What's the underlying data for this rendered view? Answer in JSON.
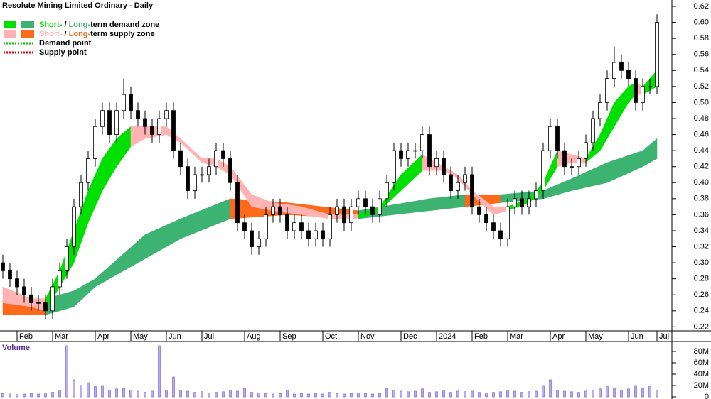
{
  "chart_data": {
    "type": "candlestick",
    "title": "Resolute Mining Limited Ordinary - Daily",
    "categories": [
      null,
      null,
      "Feb",
      null,
      null,
      null,
      null,
      "Mar",
      null,
      null,
      null,
      null,
      null,
      "Apr",
      null,
      null,
      null,
      null,
      "May",
      null,
      null,
      null,
      null,
      "Jun",
      null,
      null,
      null,
      null,
      "Jul",
      null,
      null,
      null,
      null,
      null,
      "Aug",
      null,
      null,
      null,
      null,
      "Sep",
      null,
      null,
      null,
      null,
      null,
      "Oct",
      null,
      null,
      null,
      null,
      "Nov",
      null,
      null,
      null,
      null,
      null,
      "Dec",
      null,
      null,
      null,
      null,
      "2024",
      null,
      null,
      null,
      null,
      "Feb",
      null,
      null,
      null,
      null,
      "Mar",
      null,
      null,
      null,
      null,
      null,
      "Apr",
      null,
      null,
      null,
      null,
      "May",
      null,
      null,
      null,
      null,
      null,
      "Jun",
      null,
      null,
      null,
      "Jul"
    ],
    "open": [
      0.3,
      0.29,
      0.28,
      0.27,
      0.26,
      0.25,
      0.25,
      0.24,
      0.27,
      0.29,
      0.32,
      0.37,
      0.4,
      0.43,
      0.47,
      0.49,
      0.46,
      0.49,
      0.51,
      0.49,
      0.48,
      0.47,
      0.46,
      0.48,
      0.49,
      0.44,
      0.42,
      0.39,
      0.41,
      0.41,
      0.42,
      0.44,
      0.43,
      0.4,
      0.35,
      0.34,
      0.32,
      0.33,
      0.36,
      0.37,
      0.36,
      0.34,
      0.35,
      0.34,
      0.33,
      0.34,
      0.33,
      0.36,
      0.37,
      0.35,
      0.37,
      0.38,
      0.37,
      0.36,
      0.38,
      0.4,
      0.44,
      0.43,
      0.44,
      0.44,
      0.46,
      0.42,
      0.43,
      0.41,
      0.39,
      0.4,
      0.41,
      0.37,
      0.36,
      0.35,
      0.34,
      0.33,
      0.37,
      0.38,
      0.37,
      0.38,
      0.39,
      0.44,
      0.47,
      0.44,
      0.42,
      0.42,
      0.43,
      0.45,
      0.48,
      0.5,
      0.53,
      0.55,
      0.54,
      0.53,
      0.5,
      0.52,
      0.52
    ],
    "high": [
      0.31,
      0.3,
      0.29,
      0.28,
      0.27,
      0.26,
      0.26,
      0.28,
      0.3,
      0.33,
      0.38,
      0.41,
      0.44,
      0.48,
      0.5,
      0.5,
      0.5,
      0.53,
      0.52,
      0.5,
      0.49,
      0.48,
      0.49,
      0.5,
      0.5,
      0.45,
      0.43,
      0.42,
      0.42,
      0.43,
      0.45,
      0.45,
      0.44,
      0.41,
      0.36,
      0.35,
      0.34,
      0.37,
      0.38,
      0.38,
      0.37,
      0.36,
      0.36,
      0.35,
      0.35,
      0.35,
      0.37,
      0.38,
      0.38,
      0.38,
      0.39,
      0.39,
      0.38,
      0.39,
      0.41,
      0.45,
      0.45,
      0.45,
      0.45,
      0.47,
      0.47,
      0.44,
      0.44,
      0.42,
      0.41,
      0.42,
      0.42,
      0.38,
      0.37,
      0.36,
      0.35,
      0.38,
      0.39,
      0.39,
      0.39,
      0.4,
      0.45,
      0.48,
      0.48,
      0.45,
      0.43,
      0.44,
      0.46,
      0.49,
      0.51,
      0.54,
      0.57,
      0.56,
      0.55,
      0.54,
      0.53,
      0.53,
      0.61
    ],
    "low": [
      0.28,
      0.27,
      0.26,
      0.25,
      0.24,
      0.24,
      0.23,
      0.23,
      0.26,
      0.28,
      0.31,
      0.36,
      0.39,
      0.42,
      0.46,
      0.45,
      0.45,
      0.48,
      0.48,
      0.47,
      0.46,
      0.45,
      0.45,
      0.47,
      0.43,
      0.41,
      0.38,
      0.38,
      0.4,
      0.4,
      0.41,
      0.42,
      0.39,
      0.34,
      0.33,
      0.31,
      0.31,
      0.32,
      0.35,
      0.35,
      0.33,
      0.33,
      0.33,
      0.32,
      0.32,
      0.32,
      0.32,
      0.35,
      0.34,
      0.34,
      0.36,
      0.36,
      0.35,
      0.35,
      0.37,
      0.39,
      0.42,
      0.42,
      0.43,
      0.43,
      0.41,
      0.41,
      0.4,
      0.38,
      0.38,
      0.39,
      0.36,
      0.35,
      0.34,
      0.33,
      0.32,
      0.32,
      0.36,
      0.36,
      0.36,
      0.37,
      0.38,
      0.43,
      0.43,
      0.41,
      0.41,
      0.41,
      0.42,
      0.44,
      0.47,
      0.49,
      0.52,
      0.53,
      0.52,
      0.49,
      0.49,
      0.51,
      0.51
    ],
    "close": [
      0.29,
      0.28,
      0.27,
      0.26,
      0.25,
      0.25,
      0.24,
      0.27,
      0.29,
      0.32,
      0.37,
      0.4,
      0.43,
      0.47,
      0.49,
      0.46,
      0.49,
      0.51,
      0.49,
      0.48,
      0.47,
      0.46,
      0.48,
      0.49,
      0.44,
      0.42,
      0.39,
      0.41,
      0.41,
      0.42,
      0.44,
      0.43,
      0.4,
      0.35,
      0.34,
      0.32,
      0.33,
      0.36,
      0.37,
      0.36,
      0.34,
      0.35,
      0.34,
      0.33,
      0.34,
      0.33,
      0.36,
      0.37,
      0.35,
      0.37,
      0.38,
      0.37,
      0.36,
      0.38,
      0.4,
      0.44,
      0.43,
      0.44,
      0.44,
      0.46,
      0.42,
      0.43,
      0.41,
      0.39,
      0.4,
      0.41,
      0.37,
      0.36,
      0.35,
      0.34,
      0.33,
      0.37,
      0.38,
      0.37,
      0.38,
      0.39,
      0.44,
      0.47,
      0.44,
      0.42,
      0.42,
      0.43,
      0.45,
      0.48,
      0.5,
      0.53,
      0.55,
      0.54,
      0.53,
      0.5,
      0.52,
      0.52,
      0.6
    ],
    "ylim": [
      0.215,
      0.628
    ],
    "yticks": [
      0.22,
      0.24,
      0.26,
      0.28,
      {
        "value": 0.3,
        "label": "0.30"
      },
      0.32,
      0.34,
      0.36,
      0.38,
      {
        "value": 0.4,
        "label": "0.40"
      },
      0.42,
      0.44,
      0.46,
      0.48,
      {
        "value": 0.5,
        "label": "0.50"
      },
      0.52,
      0.54,
      0.56,
      0.58,
      {
        "value": 0.6,
        "label": "0.60"
      },
      0.62
    ],
    "bands": {
      "short": {
        "x": [
          0,
          4,
          6,
          8,
          10,
          12,
          14,
          16,
          18,
          20,
          23,
          25,
          28,
          30,
          32,
          35,
          38,
          42,
          46,
          50,
          53,
          56,
          59,
          62,
          64,
          66,
          69,
          71,
          74,
          76,
          78,
          80,
          82,
          84,
          86,
          88,
          89,
          90,
          92
        ],
        "upper": [
          0.27,
          0.255,
          0.255,
          0.29,
          0.34,
          0.39,
          0.43,
          0.455,
          0.47,
          0.47,
          0.47,
          0.455,
          0.43,
          0.43,
          0.42,
          0.385,
          0.375,
          0.37,
          0.36,
          0.36,
          0.37,
          0.41,
          0.435,
          0.42,
          0.41,
          0.39,
          0.37,
          0.37,
          0.38,
          0.4,
          0.44,
          0.435,
          0.43,
          0.46,
          0.5,
          0.52,
          0.525,
          0.52,
          0.54
        ],
        "lower": [
          0.25,
          0.245,
          0.24,
          0.27,
          0.3,
          0.35,
          0.39,
          0.42,
          0.445,
          0.455,
          0.46,
          0.45,
          0.425,
          0.42,
          0.41,
          0.37,
          0.365,
          0.36,
          0.355,
          0.355,
          0.365,
          0.39,
          0.415,
          0.415,
          0.405,
          0.385,
          0.36,
          0.365,
          0.375,
          0.39,
          0.42,
          0.425,
          0.425,
          0.44,
          0.47,
          0.5,
          0.51,
          0.51,
          0.52
        ]
      },
      "long": {
        "x": [
          0,
          6,
          10,
          13,
          20,
          25,
          32,
          40,
          50,
          60,
          65,
          70,
          76,
          80,
          85,
          90,
          92
        ],
        "upper": [
          0.255,
          0.255,
          0.265,
          0.28,
          0.335,
          0.355,
          0.38,
          0.375,
          0.365,
          0.38,
          0.385,
          0.385,
          0.39,
          0.405,
          0.425,
          0.44,
          0.455
        ],
        "lower": [
          0.235,
          0.235,
          0.245,
          0.27,
          0.305,
          0.33,
          0.355,
          0.36,
          0.355,
          0.365,
          0.37,
          0.375,
          0.38,
          0.39,
          0.4,
          0.42,
          0.43
        ]
      }
    },
    "legend": {
      "demand": {
        "short": "Short-",
        "sep": " / ",
        "long": "Long-",
        "rest": "term demand zone",
        "colors": [
          "#00e000",
          "#3cb371"
        ]
      },
      "supply": {
        "short": "Short-",
        "sep": " / ",
        "long": "Long-",
        "rest": "term supply zone",
        "colors": [
          "#ffb3b3",
          "#ff6a1a"
        ]
      },
      "points": [
        {
          "label": "Demand point",
          "color": "#00c000"
        },
        {
          "label": "Supply point",
          "color": "#e00000"
        }
      ]
    },
    "volume": {
      "label": "Volume",
      "color": "#6a5acd",
      "values": [
        6000000.0,
        5000000.0,
        4000000.0,
        5000000.0,
        6000000.0,
        5000000.0,
        7000000.0,
        8000000.0,
        12000000.0,
        90000000.0,
        30000000.0,
        20000000.0,
        25000000.0,
        18000000.0,
        20000000.0,
        12000000.0,
        14000000.0,
        15000000.0,
        12000000.0,
        10000000.0,
        8000000.0,
        10000000.0,
        90000000.0,
        12000000.0,
        35000000.0,
        12000000.0,
        10000000.0,
        8000000.0,
        9000000.0,
        7000000.0,
        8000000.0,
        9000000.0,
        12000000.0,
        10000000.0,
        15000000.0,
        8000000.0,
        7000000.0,
        6000000.0,
        5000000.0,
        6000000.0,
        12000000.0,
        5000000.0,
        6000000.0,
        5000000.0,
        6000000.0,
        5000000.0,
        8000000.0,
        6000000.0,
        5000000.0,
        6000000.0,
        7000000.0,
        6000000.0,
        5000000.0,
        6000000.0,
        15000000.0,
        12000000.0,
        10000000.0,
        9000000.0,
        10000000.0,
        14000000.0,
        8000000.0,
        9000000.0,
        12000000.0,
        8000000.0,
        10000000.0,
        9000000.0,
        10000000.0,
        8000000.0,
        7000000.0,
        8000000.0,
        9000000.0,
        12000000.0,
        10000000.0,
        8000000.0,
        9000000.0,
        10000000.0,
        20000000.0,
        30000000.0,
        12000000.0,
        10000000.0,
        9000000.0,
        8000000.0,
        10000000.0,
        12000000.0,
        14000000.0,
        18000000.0,
        16000000.0,
        12000000.0,
        14000000.0,
        20000000.0,
        16000000.0,
        18000000.0,
        12000000.0
      ],
      "ylim": [
        0,
        95000000
      ],
      "yticks": [
        0,
        {
          "value": 20000000,
          "label": "20M"
        },
        {
          "value": 40000000,
          "label": "40M"
        },
        {
          "value": 60000000,
          "label": "60M"
        },
        {
          "value": 80000000,
          "label": "80M"
        }
      ]
    }
  }
}
